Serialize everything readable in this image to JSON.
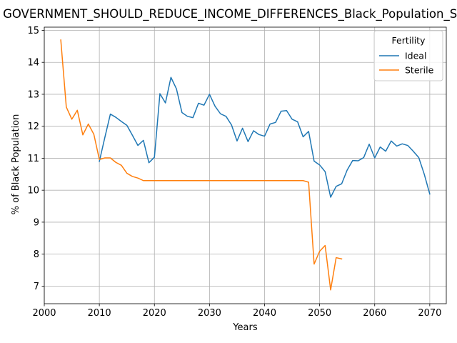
{
  "chart_data": {
    "type": "line",
    "title": "GOVERNMENT_SHOULD_REDUCE_INCOME_DIFFERENCES_Black_Population_Score",
    "xlabel": "Years",
    "ylabel": "% of Black Population",
    "xlim": [
      2000,
      2073
    ],
    "ylim": [
      6.45,
      15.1
    ],
    "xticks": [
      2000,
      2010,
      2020,
      2030,
      2040,
      2050,
      2060,
      2070
    ],
    "yticks": [
      7,
      8,
      9,
      10,
      11,
      12,
      13,
      14,
      15
    ],
    "grid": true,
    "legend": {
      "title": "Fertility",
      "placement": "top-right"
    },
    "series": [
      {
        "name": "Ideal",
        "color": "#1f77b4",
        "x": [
          2010,
          2011,
          2012,
          2013,
          2014,
          2015,
          2016,
          2017,
          2018,
          2019,
          2020,
          2021,
          2022,
          2023,
          2024,
          2025,
          2026,
          2027,
          2028,
          2029,
          2030,
          2031,
          2032,
          2033,
          2034,
          2035,
          2036,
          2037,
          2038,
          2039,
          2040,
          2041,
          2042,
          2043,
          2044,
          2045,
          2046,
          2047,
          2048,
          2049,
          2050,
          2051,
          2052,
          2053,
          2054,
          2055,
          2056,
          2057,
          2058,
          2059,
          2060,
          2061,
          2062,
          2063,
          2064,
          2065,
          2066,
          2067,
          2068,
          2069,
          2070
        ],
        "y": [
          10.9,
          11.65,
          12.38,
          12.28,
          12.15,
          12.03,
          11.72,
          11.4,
          11.56,
          10.86,
          11.03,
          13.02,
          12.73,
          13.53,
          13.17,
          12.43,
          12.31,
          12.27,
          12.72,
          12.66,
          13.0,
          12.63,
          12.39,
          12.31,
          12.04,
          11.54,
          11.94,
          11.52,
          11.86,
          11.74,
          11.69,
          12.07,
          12.12,
          12.47,
          12.49,
          12.22,
          12.14,
          11.67,
          11.84,
          10.91,
          10.79,
          10.58,
          9.78,
          10.12,
          10.2,
          10.63,
          10.93,
          10.92,
          11.02,
          11.44,
          11.01,
          11.35,
          11.22,
          11.54,
          11.38,
          11.45,
          11.4,
          11.22,
          11.02,
          10.5,
          9.88
        ]
      },
      {
        "name": "Sterile",
        "color": "#ff7f0e",
        "x": [
          2003,
          2004,
          2005,
          2006,
          2007,
          2008,
          2009,
          2010,
          2011,
          2012,
          2013,
          2014,
          2015,
          2016,
          2017,
          2018,
          2019,
          2020,
          2021,
          2022,
          2023,
          2024,
          2025,
          2026,
          2027,
          2028,
          2029,
          2030,
          2031,
          2032,
          2033,
          2034,
          2035,
          2036,
          2037,
          2038,
          2039,
          2040,
          2041,
          2042,
          2043,
          2044,
          2045,
          2046,
          2047,
          2048,
          2049,
          2050,
          2051,
          2052,
          2053,
          2054
        ],
        "y": [
          14.7,
          12.6,
          12.22,
          12.5,
          11.73,
          12.07,
          11.75,
          10.96,
          11.01,
          11.01,
          10.87,
          10.78,
          10.53,
          10.43,
          10.38,
          10.3,
          10.3,
          10.3,
          10.3,
          10.3,
          10.3,
          10.3,
          10.3,
          10.3,
          10.3,
          10.3,
          10.3,
          10.3,
          10.3,
          10.3,
          10.3,
          10.3,
          10.3,
          10.3,
          10.3,
          10.3,
          10.3,
          10.3,
          10.3,
          10.3,
          10.3,
          10.3,
          10.3,
          10.3,
          10.3,
          10.25,
          7.69,
          8.09,
          8.27,
          6.88,
          7.89,
          7.85
        ]
      }
    ]
  }
}
